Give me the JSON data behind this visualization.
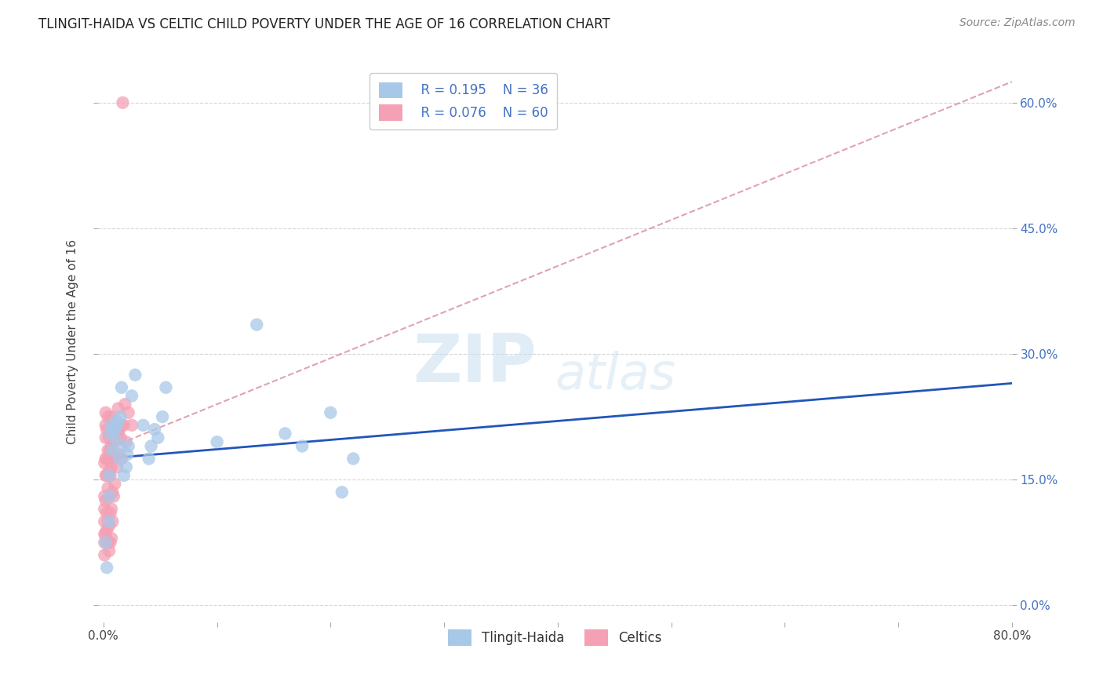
{
  "title": "TLINGIT-HAIDA VS CELTIC CHILD POVERTY UNDER THE AGE OF 16 CORRELATION CHART",
  "source": "Source: ZipAtlas.com",
  "ylabel_label": "Child Poverty Under the Age of 16",
  "xlim": [
    0,
    0.8
  ],
  "ylim": [
    0,
    0.65
  ],
  "watermark_zip": "ZIP",
  "watermark_atlas": "atlas",
  "legend_r1": "R = 0.195",
  "legend_n1": "N = 36",
  "legend_r2": "R = 0.076",
  "legend_n2": "N = 60",
  "color_blue": "#a8c8e8",
  "color_pink": "#f4a0b5",
  "trendline_blue": "#2255bb",
  "trendline_pink": "#cc6677",
  "grid_color": "#cccccc",
  "tlingit_x": [
    0.002,
    0.003,
    0.005,
    0.005,
    0.005,
    0.006,
    0.007,
    0.008,
    0.01,
    0.01,
    0.012,
    0.012,
    0.014,
    0.015,
    0.015,
    0.016,
    0.018,
    0.02,
    0.021,
    0.022,
    0.025,
    0.028,
    0.035,
    0.04,
    0.042,
    0.045,
    0.048,
    0.052,
    0.055,
    0.1,
    0.135,
    0.16,
    0.175,
    0.2,
    0.21,
    0.22
  ],
  "tlingit_y": [
    0.075,
    0.045,
    0.1,
    0.13,
    0.155,
    0.205,
    0.215,
    0.185,
    0.2,
    0.21,
    0.215,
    0.22,
    0.175,
    0.19,
    0.225,
    0.26,
    0.155,
    0.165,
    0.18,
    0.19,
    0.25,
    0.275,
    0.215,
    0.175,
    0.19,
    0.21,
    0.2,
    0.225,
    0.26,
    0.195,
    0.335,
    0.205,
    0.19,
    0.23,
    0.135,
    0.175
  ],
  "celtic_x": [
    0.001,
    0.001,
    0.001,
    0.001,
    0.001,
    0.001,
    0.001,
    0.002,
    0.002,
    0.002,
    0.002,
    0.002,
    0.002,
    0.002,
    0.003,
    0.003,
    0.003,
    0.003,
    0.003,
    0.004,
    0.004,
    0.004,
    0.004,
    0.004,
    0.005,
    0.005,
    0.005,
    0.005,
    0.005,
    0.006,
    0.006,
    0.006,
    0.006,
    0.007,
    0.007,
    0.007,
    0.007,
    0.007,
    0.008,
    0.008,
    0.008,
    0.008,
    0.009,
    0.009,
    0.01,
    0.01,
    0.012,
    0.013,
    0.013,
    0.014,
    0.014,
    0.015,
    0.016,
    0.016,
    0.017,
    0.018,
    0.019,
    0.02,
    0.022,
    0.025
  ],
  "celtic_y": [
    0.06,
    0.075,
    0.085,
    0.1,
    0.115,
    0.13,
    0.17,
    0.085,
    0.125,
    0.155,
    0.175,
    0.2,
    0.215,
    0.23,
    0.09,
    0.11,
    0.155,
    0.175,
    0.21,
    0.075,
    0.1,
    0.14,
    0.185,
    0.225,
    0.065,
    0.095,
    0.13,
    0.16,
    0.2,
    0.075,
    0.11,
    0.155,
    0.185,
    0.08,
    0.115,
    0.165,
    0.19,
    0.225,
    0.1,
    0.135,
    0.175,
    0.205,
    0.13,
    0.175,
    0.145,
    0.195,
    0.165,
    0.205,
    0.235,
    0.18,
    0.21,
    0.2,
    0.175,
    0.215,
    0.6,
    0.215,
    0.24,
    0.195,
    0.23,
    0.215
  ],
  "tlingit_trend_x": [
    0.0,
    0.8
  ],
  "tlingit_trend_y": [
    0.175,
    0.265
  ],
  "celtic_trend_x": [
    0.0,
    0.8
  ],
  "celtic_trend_y": [
    0.185,
    0.625
  ]
}
